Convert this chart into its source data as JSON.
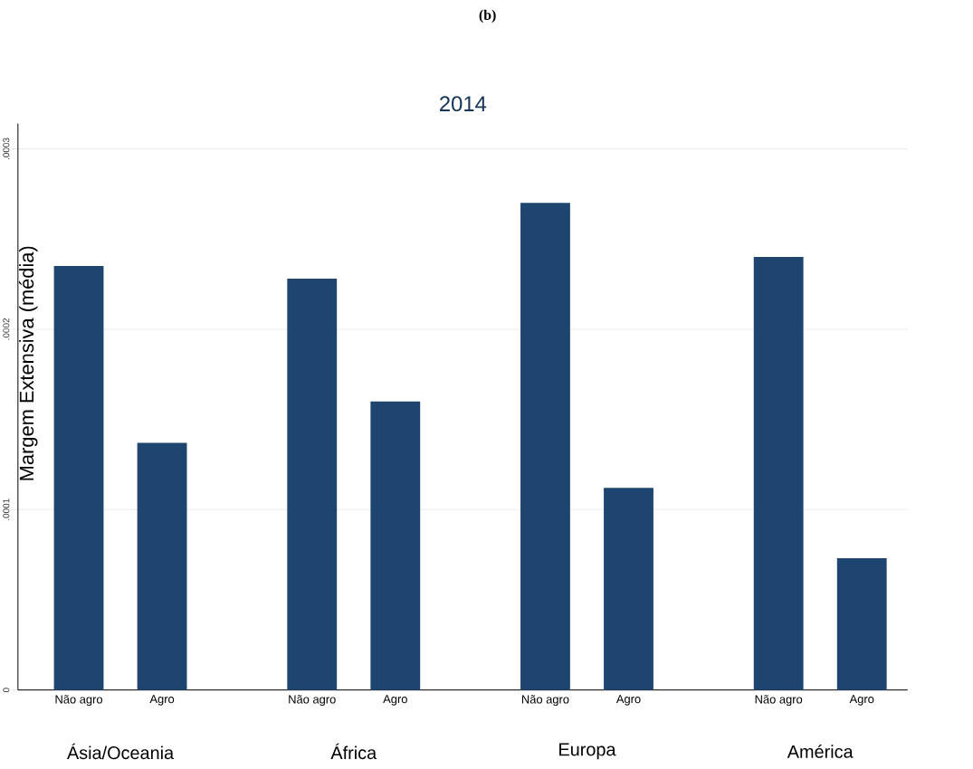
{
  "chart_data": {
    "type": "bar",
    "title": "(b)",
    "subtitle": "2014",
    "ylabel": "Margem Extensiva (média)",
    "categories": [
      "Não agro",
      "Agro",
      "Não agro",
      "Agro",
      "Não agro",
      "Agro",
      "Não agro",
      "Agro"
    ],
    "values": [
      0.000235,
      0.000137,
      0.000228,
      0.00016,
      0.00027,
      0.000112,
      0.00024,
      7.3e-05
    ],
    "color": "#1d4570",
    "ylim": [
      0,
      0.000314
    ],
    "yticks": [
      0,
      {
        "value": 0.0001,
        "label": ".0001"
      },
      {
        "value": 0.0002,
        "label": ".0002"
      },
      {
        "value": 0.0003,
        "label": ".0003"
      }
    ],
    "grid": "y",
    "annotations": [
      "Ásia/Oceania",
      "África",
      "Europa",
      "América"
    ]
  }
}
